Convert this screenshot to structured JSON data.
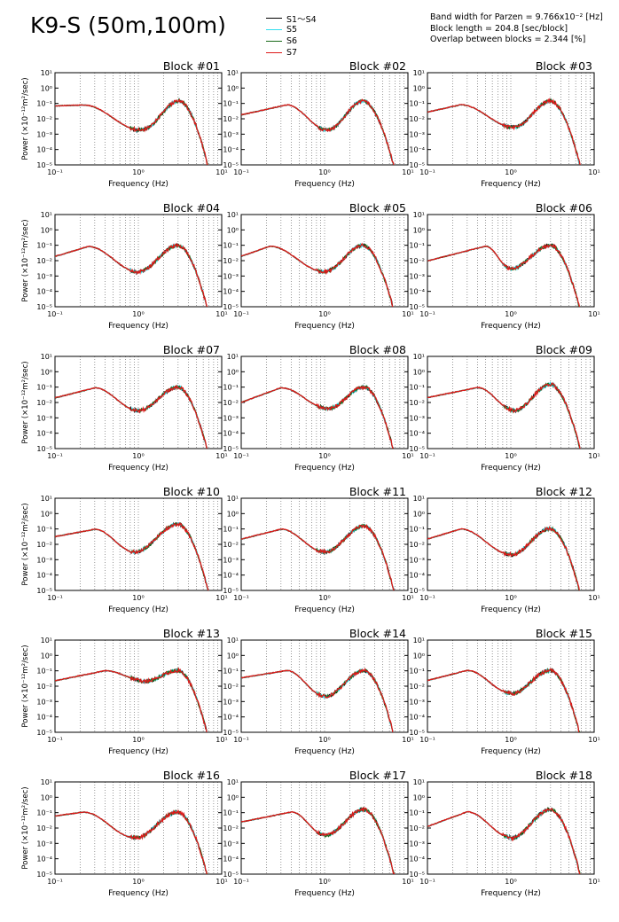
{
  "title": "K9-S (50m,100m)",
  "legend": [
    {
      "label": "S1～S4",
      "color": "#000000"
    },
    {
      "label": "S5",
      "color": "#33ddee"
    },
    {
      "label": "S6",
      "color": "#1a6a1a"
    },
    {
      "label": "S7",
      "color": "#dd1a1a"
    }
  ],
  "params": [
    "Band width for Parzen = 9.766x10⁻² [Hz]",
    "Block length = 204.8 [sec/block]",
    "Overlap between blocks = 2.344 [%]"
  ],
  "axes": {
    "xlabel": "Frequency (Hz)",
    "ylabel": "Power (×10⁻¹²m²/sec)",
    "x_ticks": [
      "10⁻¹",
      "10⁰",
      "10¹"
    ],
    "y_ticks": [
      "10¹",
      "10⁰",
      "10⁻¹",
      "10⁻²",
      "10⁻³",
      "10⁻⁴",
      "10⁻⁵"
    ]
  },
  "chart_data": {
    "type": "line",
    "xscale": "log",
    "yscale": "log",
    "xlim": [
      0.1,
      10
    ],
    "ylim": [
      1e-05,
      10
    ],
    "grid": "vertical dotted at x decades",
    "series_names": [
      "S1～S4",
      "S5",
      "S6",
      "S7"
    ],
    "curve_params_note": "",
    "blocks": [
      {
        "title": "Block #01",
        "low": 0.08,
        "peak_f": 0.22,
        "trough": 0.002,
        "peak2": 0.15,
        "trough_f": 1.1,
        "peak2_f": 3.1
      },
      {
        "title": "Block #02",
        "low": 0.02,
        "peak_f": 0.35,
        "trough": 0.002,
        "peak2": 0.15,
        "trough_f": 1.1,
        "peak2_f": 2.9
      },
      {
        "title": "Block #03",
        "low": 0.03,
        "peak_f": 0.25,
        "trough": 0.003,
        "peak2": 0.15,
        "trough_f": 1.1,
        "peak2_f": 3.0
      },
      {
        "title": "Block #04",
        "low": 0.02,
        "peak_f": 0.25,
        "trough": 0.002,
        "peak2": 0.1,
        "trough_f": 1.0,
        "peak2_f": 3.0
      },
      {
        "title": "Block #05",
        "low": 0.02,
        "peak_f": 0.22,
        "trough": 0.002,
        "peak2": 0.1,
        "trough_f": 1.0,
        "peak2_f": 2.9
      },
      {
        "title": "Block #06",
        "low": 0.01,
        "peak_f": 0.5,
        "trough": 0.003,
        "peak2": 0.1,
        "trough_f": 1.0,
        "peak2_f": 3.0
      },
      {
        "title": "Block #07",
        "low": 0.02,
        "peak_f": 0.3,
        "trough": 0.003,
        "peak2": 0.1,
        "trough_f": 1.0,
        "peak2_f": 3.0
      },
      {
        "title": "Block #08",
        "low": 0.01,
        "peak_f": 0.3,
        "trough": 0.004,
        "peak2": 0.1,
        "trough_f": 1.1,
        "peak2_f": 3.0
      },
      {
        "title": "Block #09",
        "low": 0.02,
        "peak_f": 0.4,
        "trough": 0.003,
        "peak2": 0.15,
        "trough_f": 1.1,
        "peak2_f": 3.0
      },
      {
        "title": "Block #10",
        "low": 0.03,
        "peak_f": 0.3,
        "trough": 0.003,
        "peak2": 0.2,
        "trough_f": 0.9,
        "peak2_f": 3.0
      },
      {
        "title": "Block #11",
        "low": 0.02,
        "peak_f": 0.3,
        "trough": 0.003,
        "peak2": 0.15,
        "trough_f": 1.0,
        "peak2_f": 3.0
      },
      {
        "title": "Block #12",
        "low": 0.02,
        "peak_f": 0.25,
        "trough": 0.002,
        "peak2": 0.1,
        "trough_f": 1.0,
        "peak2_f": 3.0
      },
      {
        "title": "Block #13",
        "low": 0.02,
        "peak_f": 0.4,
        "trough": 0.02,
        "peak2": 0.1,
        "trough_f": 1.2,
        "peak2_f": 3.0
      },
      {
        "title": "Block #14",
        "low": 0.03,
        "peak_f": 0.35,
        "trough": 0.002,
        "peak2": 0.1,
        "trough_f": 1.0,
        "peak2_f": 3.0
      },
      {
        "title": "Block #15",
        "low": 0.02,
        "peak_f": 0.3,
        "trough": 0.003,
        "peak2": 0.1,
        "trough_f": 1.0,
        "peak2_f": 3.0
      },
      {
        "title": "Block #16",
        "low": 0.05,
        "peak_f": 0.22,
        "trough": 0.002,
        "peak2": 0.1,
        "trough_f": 0.9,
        "peak2_f": 3.0
      },
      {
        "title": "Block #17",
        "low": 0.02,
        "peak_f": 0.4,
        "trough": 0.003,
        "peak2": 0.15,
        "trough_f": 1.0,
        "peak2_f": 3.0
      },
      {
        "title": "Block #18",
        "low": 0.01,
        "peak_f": 0.3,
        "trough": 0.002,
        "peak2": 0.15,
        "trough_f": 1.0,
        "peak2_f": 3.0
      }
    ]
  }
}
